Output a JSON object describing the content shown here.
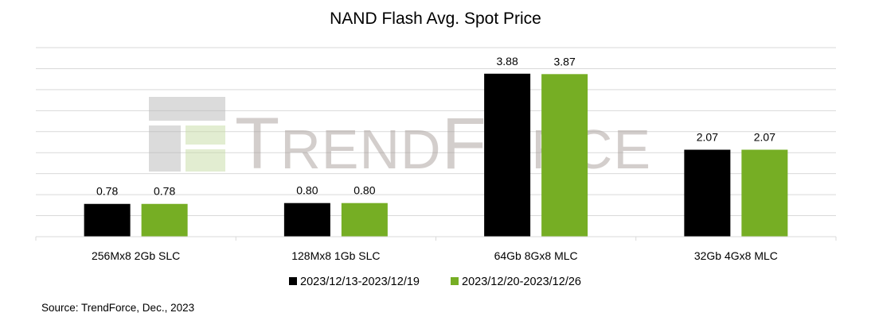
{
  "chart_data": {
    "type": "bar",
    "title": "NAND Flash Avg. Spot Price",
    "xlabel": "",
    "ylabel": "",
    "ylim": [
      0,
      4.5
    ],
    "grid_step": 0.5,
    "grid": true,
    "legend_position": "bottom",
    "categories": [
      "256Mx8 2Gb SLC",
      "128Mx8 1Gb SLC",
      "64Gb 8Gx8 MLC",
      "32Gb 4Gx8 MLC"
    ],
    "series": [
      {
        "name": "2023/12/13-2023/12/19",
        "color": "#000000",
        "values": [
          0.78,
          0.8,
          3.88,
          2.07
        ],
        "labels": [
          "0.78",
          "0.80",
          "3.88",
          "2.07"
        ]
      },
      {
        "name": "2023/12/20-2023/12/26",
        "color": "#76AE24",
        "values": [
          0.78,
          0.8,
          3.87,
          2.07
        ],
        "labels": [
          "0.78",
          "0.80",
          "3.87",
          "2.07"
        ]
      }
    ],
    "source": "Source: TrendForce, Dec., 2023"
  },
  "watermark": "TRENDFORCE"
}
